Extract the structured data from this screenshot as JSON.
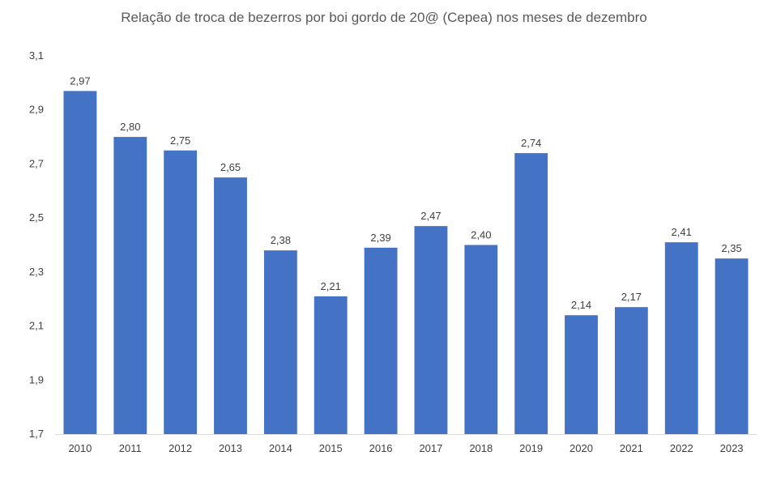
{
  "chart_data": {
    "type": "bar",
    "title": "Relação de troca de bezerros por boi gordo de 20@ (Cepea) nos meses de dezembro",
    "categories": [
      "2010",
      "2011",
      "2012",
      "2013",
      "2014",
      "2015",
      "2016",
      "2017",
      "2018",
      "2019",
      "2020",
      "2021",
      "2022",
      "2023"
    ],
    "values": [
      2.97,
      2.8,
      2.75,
      2.65,
      2.38,
      2.21,
      2.39,
      2.47,
      2.4,
      2.74,
      2.14,
      2.17,
      2.41,
      2.35
    ],
    "data_labels": [
      "2,97",
      "2,80",
      "2,75",
      "2,65",
      "2,38",
      "2,21",
      "2,39",
      "2,47",
      "2,40",
      "2,74",
      "2,14",
      "2,17",
      "2,41",
      "2,35"
    ],
    "ylim": [
      1.7,
      3.1
    ],
    "yticks": [
      1.7,
      1.9,
      2.1,
      2.3,
      2.5,
      2.7,
      2.9,
      3.1
    ],
    "ytick_labels": [
      "1,7",
      "1,9",
      "2,1",
      "2,3",
      "2,5",
      "2,7",
      "2,9",
      "3,1"
    ],
    "xlabel": "",
    "ylabel": "",
    "grid": false,
    "bar_color": "#4472C4",
    "legend": "none"
  }
}
